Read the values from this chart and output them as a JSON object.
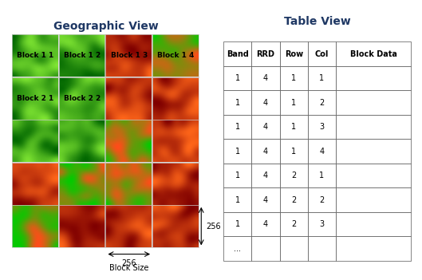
{
  "title_left": "Geographic View",
  "title_right": "Table View",
  "title_color": "#1f3864",
  "geo_grid_rows": 5,
  "geo_grid_cols": 4,
  "block_labels": [
    {
      "text": "Block 1 1",
      "row": 0,
      "col": 0
    },
    {
      "text": "Block 1 2",
      "row": 0,
      "col": 1
    },
    {
      "text": "Block 1 3",
      "row": 0,
      "col": 2
    },
    {
      "text": "Block 1 4",
      "row": 0,
      "col": 3
    },
    {
      "text": "Block 2 1",
      "row": 1,
      "col": 0
    },
    {
      "text": "Block 2 2",
      "row": 1,
      "col": 1
    }
  ],
  "table_headers": [
    "Band",
    "RRD",
    "Row",
    "Col",
    "Block Data"
  ],
  "table_rows": [
    [
      1,
      4,
      1,
      1
    ],
    [
      1,
      4,
      1,
      2
    ],
    [
      1,
      4,
      1,
      3
    ],
    [
      1,
      4,
      1,
      4
    ],
    [
      1,
      4,
      2,
      1
    ],
    [
      1,
      4,
      2,
      2
    ],
    [
      1,
      4,
      2,
      3
    ],
    [
      "...",
      "",
      "",
      ""
    ]
  ],
  "dim_label": "256",
  "block_size_label": "Block Size",
  "background": "#ffffff"
}
